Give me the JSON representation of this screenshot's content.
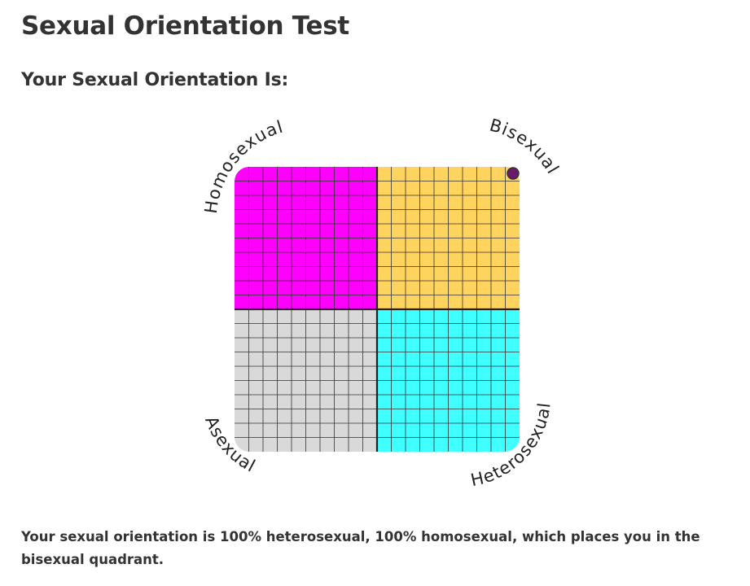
{
  "page": {
    "title": "Sexual Orientation Test",
    "result_heading": "Your Sexual Orientation Is:",
    "result_text": "Your sexual orientation is 100% heterosexual, 100% homosexual, which places you in the bisexual quadrant."
  },
  "chart": {
    "labels": {
      "top_left": "Homosexual",
      "top_right": "Bisexual",
      "bottom_left": "Asexual",
      "bottom_right": "Heterosexual"
    },
    "colors": {
      "top_left": "#ff00ff",
      "top_right": "#ffd45e",
      "bottom_left": "#d9d9d9",
      "bottom_right": "#40ffff",
      "marker": "#6b1a6b",
      "grid": "#333333"
    },
    "marker": {
      "heterosexual_percent": 100,
      "homosexual_percent": 100
    }
  }
}
